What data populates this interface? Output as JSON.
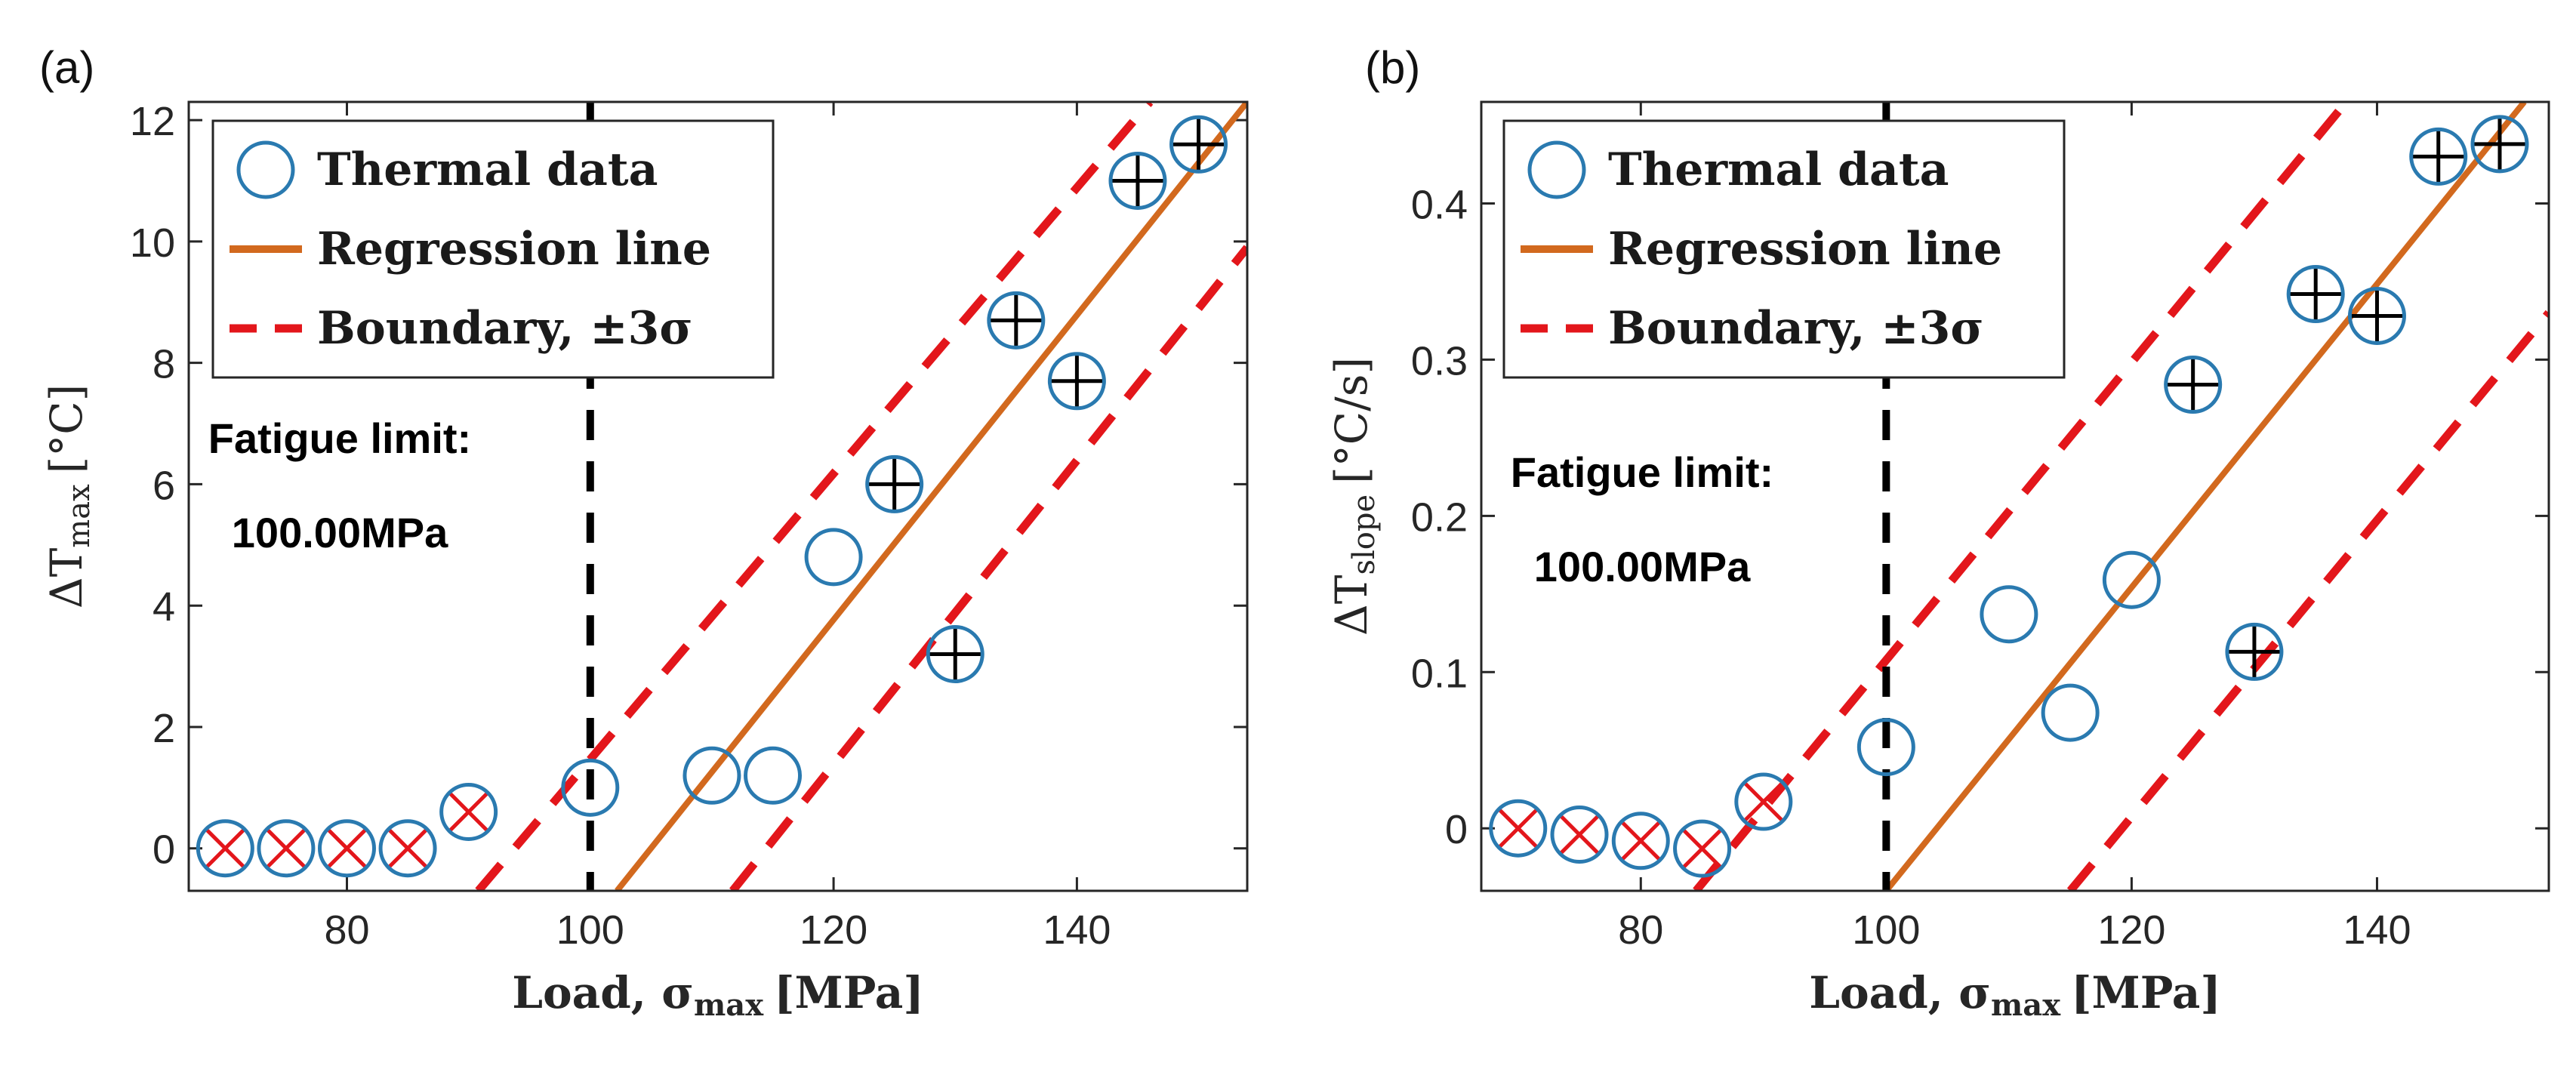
{
  "colors": {
    "circle": "#2a7ab0",
    "regression": "#d2691e",
    "boundary": "#e3161b",
    "fatigue": "#000000",
    "cross_red": "#e3161b",
    "plus_black": "#000000",
    "axis": "#262626"
  },
  "chart_data": [
    {
      "type": "scatter",
      "panel_label": "(a)",
      "ylabel_main": "ΔT",
      "ylabel_sub": "max",
      "ylabel_unit": "[°C]",
      "xlabel_main": "Load, σ",
      "xlabel_sub": "max",
      "xlabel_unit": "[MPa]",
      "xlim": [
        67,
        154
      ],
      "ylim": [
        -0.7,
        12.3
      ],
      "xticks": [
        80,
        100,
        120,
        140
      ],
      "yticks": [
        0,
        2,
        4,
        6,
        8,
        10,
        12
      ],
      "xtick_labels": [
        "80",
        "100",
        "120",
        "140"
      ],
      "ytick_labels": [
        "0",
        "2",
        "4",
        "6",
        "8",
        "10",
        "12"
      ],
      "legend": {
        "position": "top-left",
        "entries": [
          "Thermal data",
          "Regression line",
          "Boundary, ±3σ"
        ]
      },
      "fatigue_limit": {
        "x": 100,
        "label_line1": "Fatigue limit:",
        "label_line2": "100.00MPa"
      },
      "regression": {
        "x": [
          102.2,
          154
        ],
        "y": [
          -0.7,
          12.3
        ]
      },
      "boundary_upper": {
        "x": [
          90.8,
          146
        ],
        "y": [
          -0.7,
          12.3
        ]
      },
      "boundary_lower": {
        "x": [
          111.7,
          154
        ],
        "y": [
          -0.7,
          9.9
        ]
      },
      "series": [
        {
          "name": "Thermal data",
          "x": [
            70,
            75,
            80,
            85,
            90,
            100,
            110,
            115,
            120,
            125,
            130,
            135,
            140,
            145,
            150
          ],
          "y": [
            0.0,
            0.0,
            0.0,
            0.0,
            0.6,
            1.0,
            1.2,
            1.2,
            4.8,
            6.0,
            3.2,
            8.7,
            7.7,
            11.0,
            11.6
          ]
        }
      ],
      "marker_flags": [
        "x",
        "x",
        "x",
        "x",
        "x",
        "",
        "",
        "",
        "",
        "+",
        "+",
        "+",
        "+",
        "+",
        "+"
      ]
    },
    {
      "type": "scatter",
      "panel_label": "(b)",
      "ylabel_main": "ΔT",
      "ylabel_sub": "slope",
      "ylabel_unit": "[°C/s]",
      "xlabel_main": "Load, σ",
      "xlabel_sub": "max",
      "xlabel_unit": "[MPa]",
      "xlim": [
        67,
        154
      ],
      "ylim": [
        -0.04,
        0.465
      ],
      "xticks": [
        80,
        100,
        120,
        140
      ],
      "yticks": [
        0,
        0.1,
        0.2,
        0.3,
        0.4
      ],
      "xtick_labels": [
        "80",
        "100",
        "120",
        "140"
      ],
      "ytick_labels": [
        "0",
        "0.1",
        "0.2",
        "0.3",
        "0.4"
      ],
      "legend": {
        "position": "top-left",
        "entries": [
          "Thermal data",
          "Regression line",
          "Boundary, ±3σ"
        ]
      },
      "fatigue_limit": {
        "x": 100,
        "label_line1": "Fatigue limit:",
        "label_line2": "100.00MPa"
      },
      "regression": {
        "x": [
          100,
          152
        ],
        "y": [
          -0.04,
          0.465
        ]
      },
      "boundary_upper": {
        "x": [
          84.5,
          137.5
        ],
        "y": [
          -0.04,
          0.465
        ]
      },
      "boundary_lower": {
        "x": [
          115,
          154
        ],
        "y": [
          -0.04,
          0.33
        ]
      },
      "series": [
        {
          "name": "Thermal data",
          "x": [
            70,
            75,
            80,
            85,
            90,
            100,
            110,
            115,
            120,
            125,
            130,
            135,
            140,
            145,
            150
          ],
          "y": [
            0.0,
            -0.004,
            -0.008,
            -0.013,
            0.017,
            0.052,
            0.137,
            0.074,
            0.159,
            0.284,
            0.113,
            0.342,
            0.328,
            0.43,
            0.438
          ]
        }
      ],
      "marker_flags": [
        "x",
        "x",
        "x",
        "x",
        "x",
        "",
        "",
        "",
        "",
        "+",
        "+",
        "+",
        "+",
        "+",
        "+"
      ]
    }
  ]
}
